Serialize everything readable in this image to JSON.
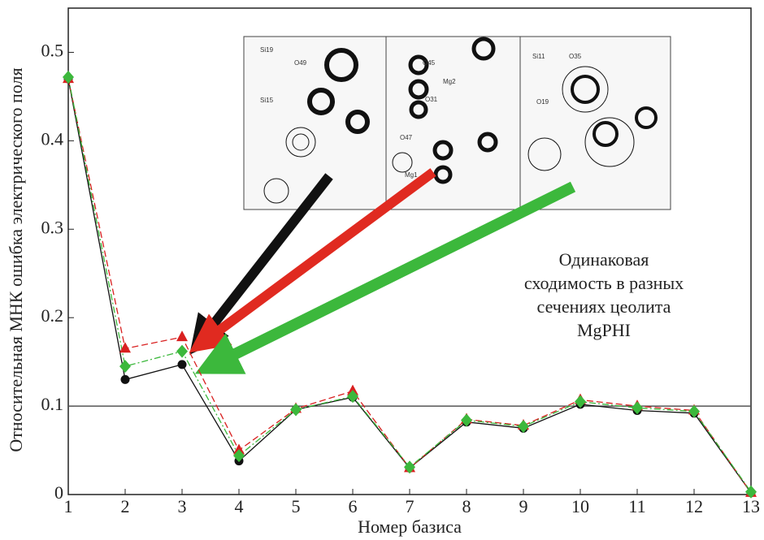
{
  "chart_data": {
    "type": "line",
    "x_label": "Номер базиса",
    "y_label": "Относительная МНК ошибка электрического поля",
    "x": [
      1,
      2,
      3,
      4,
      5,
      6,
      7,
      8,
      9,
      10,
      11,
      12,
      13
    ],
    "xlim": [
      1,
      13
    ],
    "xticks": [
      1,
      2,
      3,
      4,
      5,
      6,
      7,
      8,
      9,
      10,
      11,
      12,
      13
    ],
    "ylim": [
      0,
      0.55
    ],
    "yticks": [
      0,
      0.1,
      0.2,
      0.3,
      0.4,
      0.5
    ],
    "hline": 0.1,
    "series": [
      {
        "color": "#111111",
        "marker": "circle",
        "dash": "none",
        "values": [
          0.47,
          0.13,
          0.147,
          0.038,
          0.096,
          0.11,
          0.03,
          0.082,
          0.075,
          0.102,
          0.095,
          0.092,
          0.002
        ]
      },
      {
        "color": "#d92020",
        "marker": "triangle",
        "dash": "8 4",
        "values": [
          0.47,
          0.165,
          0.178,
          0.05,
          0.097,
          0.117,
          0.03,
          0.085,
          0.078,
          0.107,
          0.1,
          0.095,
          0.002
        ]
      },
      {
        "color": "#3cb83c",
        "marker": "diamond",
        "dash": "8 3 2 3",
        "values": [
          0.472,
          0.145,
          0.162,
          0.044,
          0.096,
          0.111,
          0.031,
          0.084,
          0.077,
          0.105,
          0.098,
          0.094,
          0.003
        ]
      }
    ],
    "annotation": [
      "Одинаковая",
      "сходимость в разных",
      "сечениях цеолита",
      "MgPHI"
    ],
    "inset_labels": [
      "Si19",
      "O49",
      "Si15",
      "O45",
      "Mg2",
      "O31",
      "O47",
      "Mg1",
      "Si11",
      "O35",
      "O19"
    ]
  }
}
